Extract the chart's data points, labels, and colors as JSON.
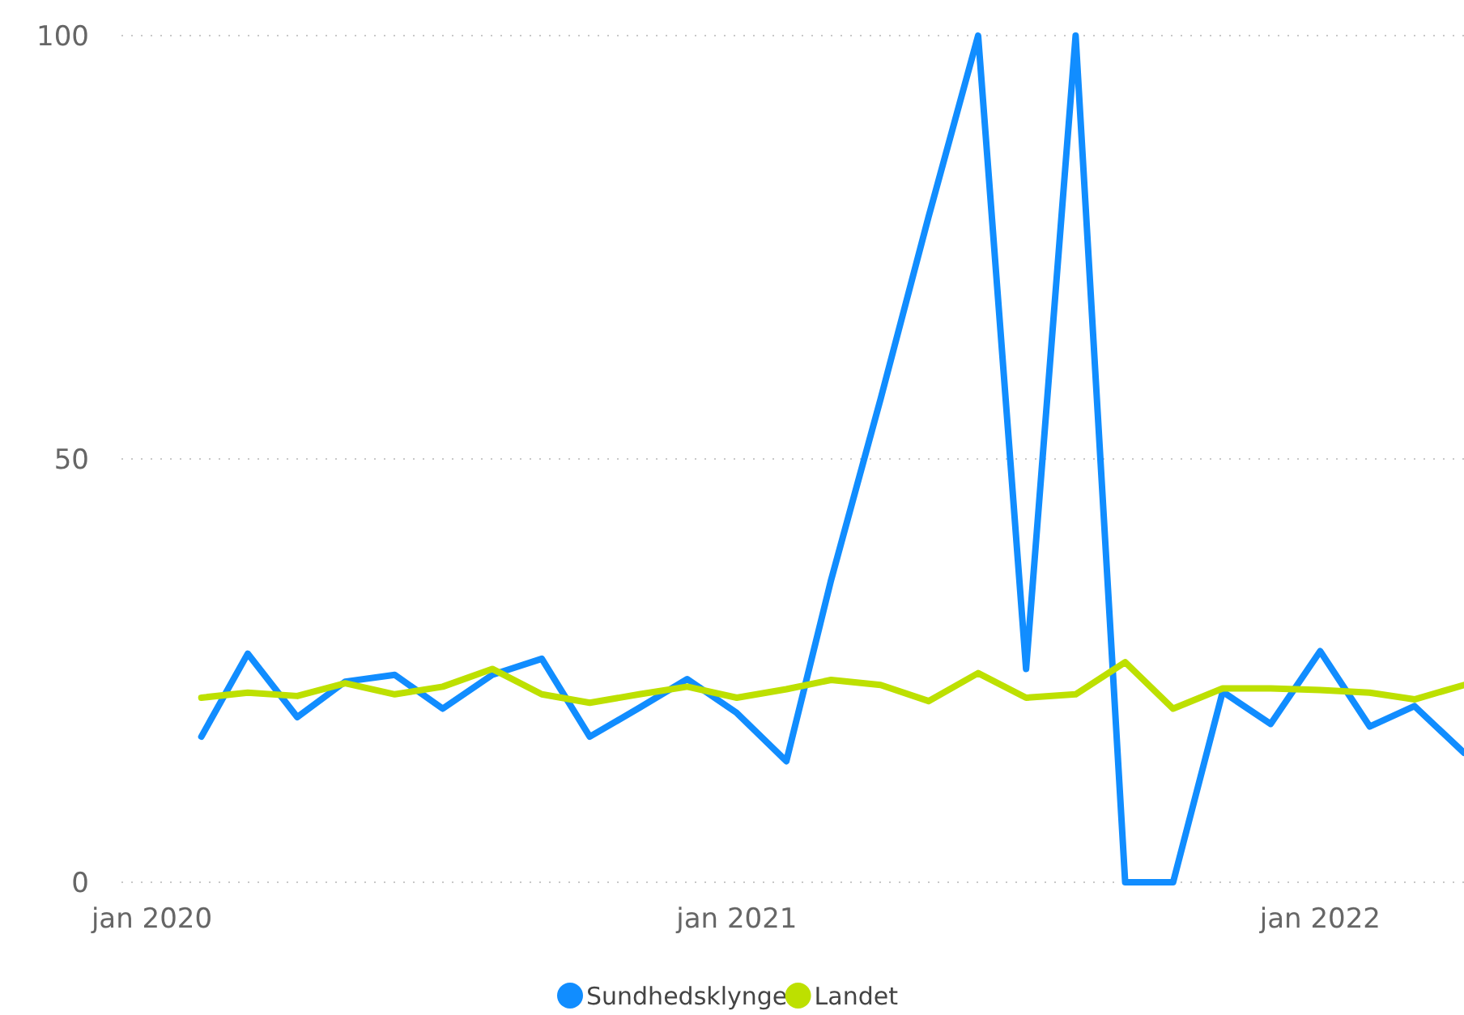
{
  "chart_data": {
    "type": "line",
    "x": [
      "2020-02",
      "2020-03",
      "2020-04",
      "2020-05",
      "2020-06",
      "2020-07",
      "2020-08",
      "2020-09",
      "2020-10",
      "2020-11",
      "2020-12",
      "2021-01",
      "2021-02",
      "2021-03",
      "2021-04",
      "2021-05",
      "2021-06",
      "2021-07",
      "2021-08",
      "2021-09",
      "2021-10",
      "2021-11",
      "2021-12",
      "2022-01",
      "2022-02",
      "2022-03",
      "2022-04"
    ],
    "series": [
      {
        "name": "Sundhedsklynge",
        "color": "#118dff",
        "values": [
          17.2,
          27,
          19.5,
          23.7,
          24.5,
          20.5,
          24.5,
          26.4,
          17.2,
          20.6,
          24,
          20,
          14.3,
          35.7,
          57.1,
          78.6,
          100,
          25.2,
          100,
          0,
          0,
          22.5,
          18.7,
          27.3,
          18.4,
          20.8,
          15.3
        ]
      },
      {
        "name": "Landet",
        "color": "#bde000",
        "values": [
          21.8,
          22.4,
          22,
          23.5,
          22.2,
          23.1,
          25.2,
          22.2,
          21.2,
          22.2,
          23.1,
          21.8,
          22.8,
          23.9,
          23.3,
          21.4,
          24.7,
          21.8,
          22.2,
          26,
          20.5,
          22.9,
          22.9,
          22.7,
          22.4,
          21.6,
          23.3
        ]
      }
    ],
    "xlim": [
      "2019-12-13",
      "2022-04-01"
    ],
    "xticks": [
      {
        "value": "2020-01",
        "label": "jan 2020"
      },
      {
        "value": "2021-01",
        "label": "jan 2021"
      },
      {
        "value": "2022-01",
        "label": "jan 2022"
      }
    ],
    "ylim": [
      0,
      100
    ],
    "yticks": [
      0,
      50,
      100
    ],
    "grid": "y",
    "legend": "bottom",
    "marker": "none",
    "line_style": "solid"
  }
}
